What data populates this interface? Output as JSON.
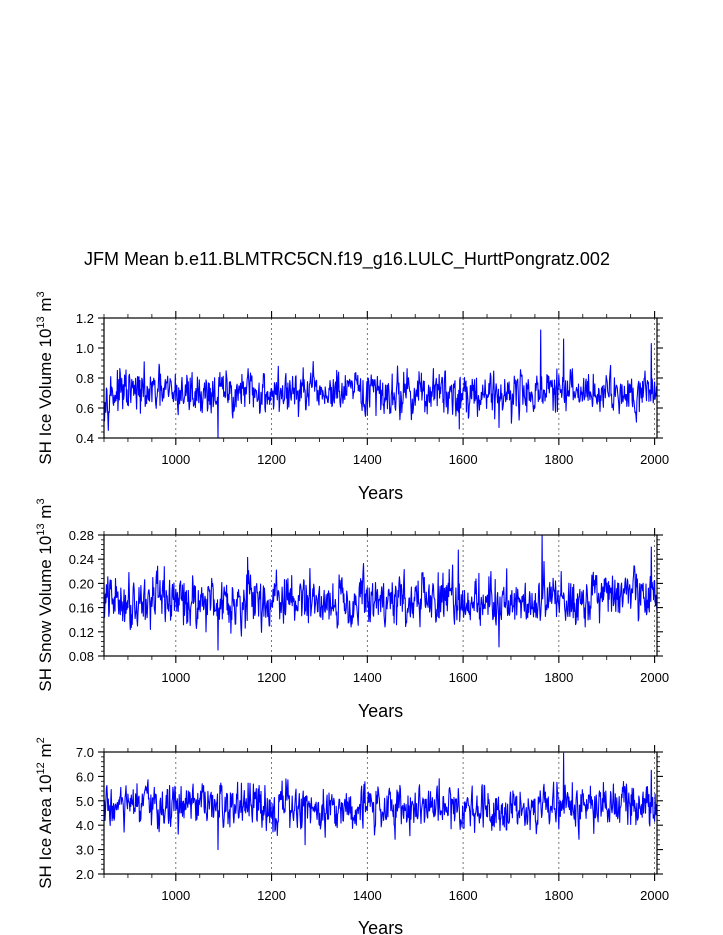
{
  "figure_title": "JFM Mean b.e11.BLMTRC5CN.f19_g16.LULC_HurttPongratz.002",
  "line_color": "#0000ff",
  "chart_data": [
    {
      "type": "line",
      "id": "ice-volume",
      "xlabel": "Years",
      "ylabel_parts": [
        "SH Ice Volume 10",
        "13",
        " m",
        "3"
      ],
      "xlim": [
        850,
        2005
      ],
      "ylim": [
        0.4,
        1.2
      ],
      "yticks": [
        "0.4",
        "0.6",
        "0.8",
        "1.0",
        "1.2"
      ],
      "xticks": [
        "1000",
        "1200",
        "1400",
        "1600",
        "1800",
        "2000"
      ],
      "gridlines_x": [
        1000,
        1200,
        1400,
        1600,
        1800,
        2000
      ],
      "series": [
        {
          "name": "SH Ice Volume",
          "mean": 0.7,
          "sd": 0.075,
          "anchors": [
            [
              1088,
              0.4
            ],
            [
              1762,
              1.12
            ],
            [
              1810,
              1.06
            ],
            [
              1993,
              1.03
            ],
            [
              1592,
              0.46
            ],
            [
              1675,
              0.47
            ],
            [
              1400,
              0.55
            ]
          ]
        }
      ]
    },
    {
      "type": "line",
      "id": "snow-volume",
      "xlabel": "Years",
      "ylabel_parts": [
        "SH Snow Volume 10",
        "13",
        " m",
        "3"
      ],
      "xlim": [
        850,
        2005
      ],
      "ylim": [
        0.08,
        0.28
      ],
      "yticks": [
        "0.08",
        "0.12",
        "0.16",
        "0.20",
        "0.24",
        "0.28"
      ],
      "xticks": [
        "1000",
        "1200",
        "1400",
        "1600",
        "1800",
        "2000"
      ],
      "gridlines_x": [
        1000,
        1200,
        1400,
        1600,
        1800,
        2000
      ],
      "series": [
        {
          "name": "SH Snow Volume",
          "mean": 0.172,
          "sd": 0.022,
          "anchors": [
            [
              1088,
              0.09
            ],
            [
              1765,
              0.28
            ],
            [
              1675,
              0.095
            ],
            [
              1590,
              0.255
            ],
            [
              1993,
              0.26
            ],
            [
              1150,
              0.243
            ]
          ]
        }
      ]
    },
    {
      "type": "line",
      "id": "ice-area",
      "xlabel": "Years",
      "ylabel_parts": [
        "SH Ice Area 10",
        "12",
        " m",
        "2"
      ],
      "xlim": [
        850,
        2005
      ],
      "ylim": [
        2.0,
        7.0
      ],
      "yticks": [
        "2.0",
        "3.0",
        "4.0",
        "5.0",
        "6.0",
        "7.0"
      ],
      "xticks": [
        "1000",
        "1200",
        "1400",
        "1600",
        "1800",
        "2000"
      ],
      "gridlines_x": [
        1000,
        1200,
        1400,
        1600,
        1800,
        2000
      ],
      "series": [
        {
          "name": "SH Ice Area",
          "mean": 4.75,
          "sd": 0.48,
          "anchors": [
            [
              1088,
              3.0
            ],
            [
              1270,
              3.2
            ],
            [
              1810,
              6.95
            ],
            [
              1993,
              6.25
            ],
            [
              1800,
              3.85
            ]
          ]
        }
      ]
    }
  ]
}
